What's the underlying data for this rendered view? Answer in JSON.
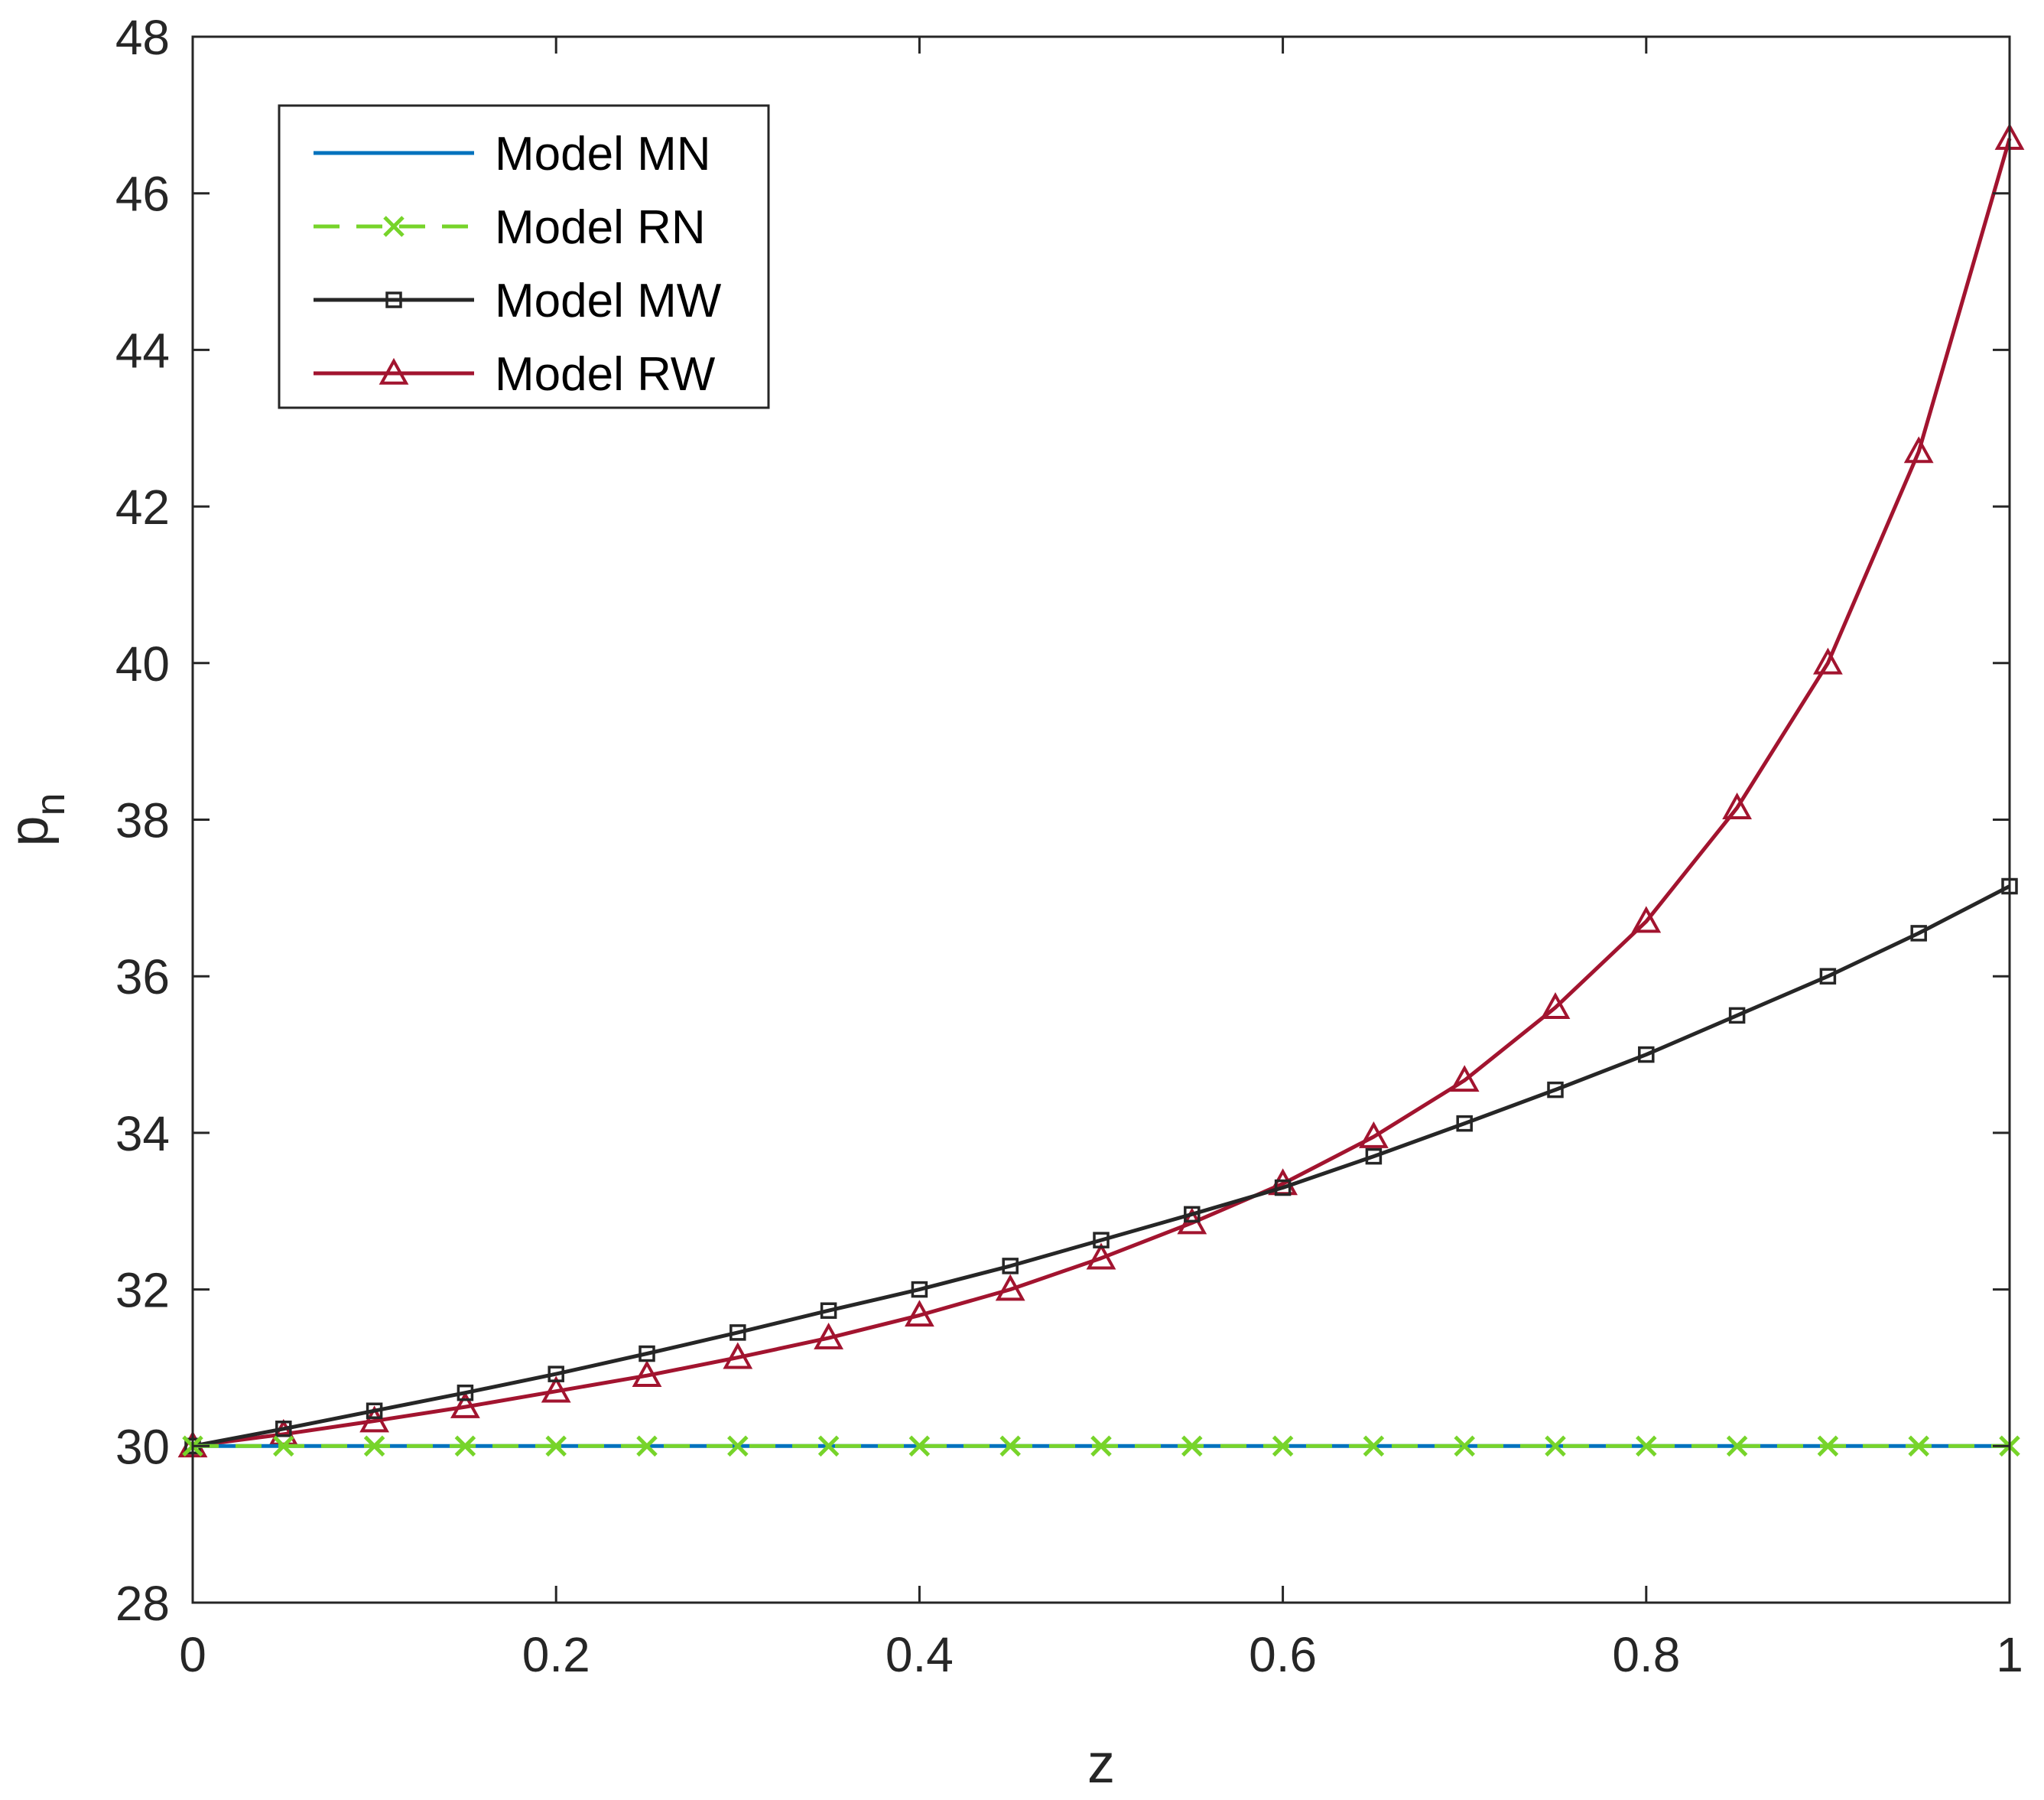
{
  "chart_data": {
    "type": "line",
    "title": "",
    "xlabel": "z",
    "ylabel": "p",
    "ylabel_subscript": "n",
    "xlim": [
      0,
      1
    ],
    "ylim": [
      28,
      48
    ],
    "xticks": [
      0,
      0.2,
      0.4,
      0.6,
      0.8,
      1
    ],
    "xtick_labels": [
      "0",
      "0.2",
      "0.4",
      "0.6",
      "0.8",
      "1"
    ],
    "yticks": [
      28,
      30,
      32,
      34,
      36,
      38,
      40,
      42,
      44,
      46,
      48
    ],
    "ytick_labels": [
      "28",
      "30",
      "32",
      "34",
      "36",
      "38",
      "40",
      "42",
      "44",
      "46",
      "48"
    ],
    "grid": false,
    "legend_position": "top-left",
    "x": [
      0,
      0.05,
      0.1,
      0.15,
      0.2,
      0.25,
      0.3,
      0.35,
      0.4,
      0.45,
      0.5,
      0.55,
      0.6,
      0.65,
      0.7,
      0.75,
      0.8,
      0.85,
      0.9,
      0.95,
      1
    ],
    "series": [
      {
        "name": "Model MN",
        "color": "#0072BD",
        "dash": "solid",
        "marker": "none",
        "values": [
          30,
          30,
          30,
          30,
          30,
          30,
          30,
          30,
          30,
          30,
          30,
          30,
          30,
          30,
          30,
          30,
          30,
          30,
          30,
          30,
          30
        ]
      },
      {
        "name": "Model RN",
        "color": "#77D42A",
        "dash": "dashed",
        "marker": "x",
        "values": [
          30,
          30,
          30,
          30,
          30,
          30,
          30,
          30,
          30,
          30,
          30,
          30,
          30,
          30,
          30,
          30,
          30,
          30,
          30,
          30,
          30
        ]
      },
      {
        "name": "Model MW",
        "color": "#262626",
        "dash": "solid",
        "marker": "square",
        "values": [
          30,
          30.22,
          30.45,
          30.68,
          30.92,
          31.18,
          31.45,
          31.73,
          32.0,
          32.3,
          32.63,
          32.96,
          33.3,
          33.7,
          34.12,
          34.55,
          35.0,
          35.5,
          36.0,
          36.55,
          37.15
        ]
      },
      {
        "name": "Model RW",
        "color": "#A2142F",
        "dash": "solid",
        "marker": "triangle",
        "values": [
          30,
          30.15,
          30.32,
          30.5,
          30.7,
          30.9,
          31.13,
          31.38,
          31.67,
          32.0,
          32.4,
          32.85,
          33.35,
          33.95,
          34.67,
          35.6,
          36.7,
          38.15,
          40.0,
          42.7,
          46.7
        ]
      }
    ]
  }
}
